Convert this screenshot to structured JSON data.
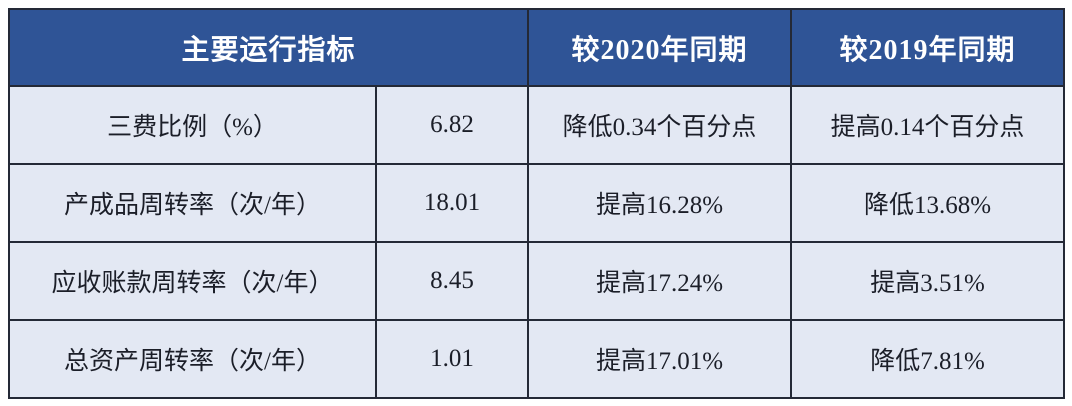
{
  "chart_data": {
    "type": "table",
    "title": "主要运行指标",
    "headers": [
      {
        "label": "主要运行指标",
        "colspan": 2
      },
      {
        "label": "较2020年同期",
        "colspan": 1
      },
      {
        "label": "较2019年同期",
        "colspan": 1
      }
    ],
    "rows": [
      [
        "三费比例（%）",
        "6.82",
        "降低0.34个百分点",
        "提高0.14个百分点"
      ],
      [
        "产成品周转率（次/年）",
        "18.01",
        "提高16.28%",
        "降低13.68%"
      ],
      [
        "应收账款周转率（次/年）",
        "8.45",
        "提高17.24%",
        "提高3.51%"
      ],
      [
        "总资产周转率（次/年）",
        "1.01",
        "提高17.01%",
        "降低7.81%"
      ]
    ],
    "layout": {
      "grid": "on",
      "header_merged_cols": 2,
      "columns_count": 4
    }
  },
  "theme": {
    "header_bg": "#2F5496",
    "header_text": "#FFFFFF",
    "cell_bg": "#E3E8F3",
    "border": "#242936",
    "cell_text": "#1B1E28",
    "page_bg": "#FFFFFF"
  }
}
